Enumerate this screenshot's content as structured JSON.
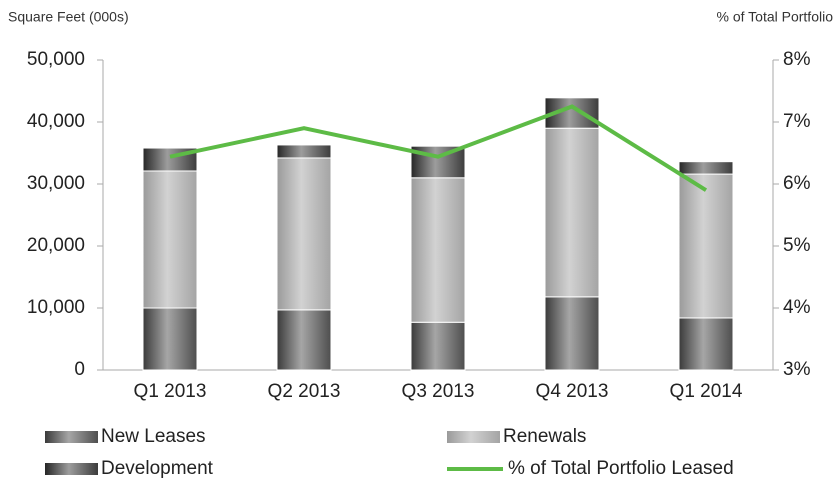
{
  "chart_data": {
    "type": "bar",
    "y_label": "Square Feet (000s)",
    "y2_label": "% of Total Portfolio",
    "categories": [
      "Q1 2013",
      "Q2 2013",
      "Q3 2013",
      "Q4 2013",
      "Q1 2014"
    ],
    "series": [
      {
        "name": "New Leases",
        "color": "#3a3a3a",
        "values": [
          10000,
          9700,
          7700,
          11800,
          8400
        ]
      },
      {
        "name": "Renewals",
        "color": "#9a9a9a",
        "values": [
          22100,
          24500,
          23300,
          27200,
          23200
        ]
      },
      {
        "name": "Development",
        "color": "#262626",
        "values": [
          3700,
          2100,
          5100,
          4900,
          2000
        ]
      },
      {
        "name": "% of Total Portfolio Leased",
        "type": "line",
        "axis": "y2",
        "color": "#5dbb46",
        "values": [
          6.44,
          6.9,
          6.44,
          7.25,
          5.9
        ]
      }
    ],
    "ylim": [
      0,
      50000
    ],
    "yticks": [
      0,
      {
        "value": 10000,
        "label": "10,000"
      },
      {
        "value": 20000,
        "label": "20,000"
      },
      {
        "value": 30000,
        "label": "30,000"
      },
      {
        "value": 40000,
        "label": "40,000"
      },
      {
        "value": 50000,
        "label": "50,000"
      }
    ],
    "y2lim": [
      3,
      8
    ],
    "y2ticks": [
      {
        "value": 3,
        "label": "3%"
      },
      {
        "value": 4,
        "label": "4%"
      },
      {
        "value": 5,
        "label": "5%"
      },
      {
        "value": 6,
        "label": "6%"
      },
      {
        "value": 7,
        "label": "7%"
      },
      {
        "value": 8,
        "label": "8%"
      }
    ],
    "stacked": true,
    "legend": "bottom"
  }
}
